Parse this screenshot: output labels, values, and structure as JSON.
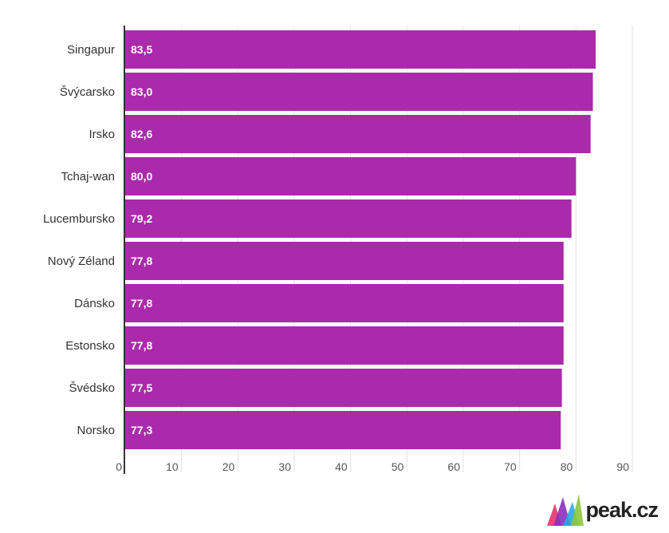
{
  "chart_data": {
    "type": "bar",
    "orientation": "horizontal",
    "categories": [
      "Singapur",
      "Švýcarsko",
      "Irsko",
      "Tchaj-wan",
      "Lucembursko",
      "Nový Zéland",
      "Dánsko",
      "Estonsko",
      "Švédsko",
      "Norsko"
    ],
    "values": [
      83.5,
      83.0,
      82.6,
      80.0,
      79.2,
      77.8,
      77.8,
      77.8,
      77.5,
      77.3
    ],
    "value_labels": [
      "83,5",
      "83,0",
      "82,6",
      "80,0",
      "79,2",
      "77,8",
      "77,8",
      "77,8",
      "77,5",
      "77,3"
    ],
    "xlim": [
      0,
      90
    ],
    "xticks": [
      0,
      10,
      20,
      30,
      40,
      50,
      60,
      70,
      80,
      90
    ],
    "grid": true,
    "bar_color": "#ab2aab",
    "title": "",
    "xlabel": "",
    "ylabel": ""
  },
  "logo": {
    "text": "peak.cz",
    "colors": [
      "#e8336d",
      "#8b2fbf",
      "#2aa7df",
      "#8cc63f"
    ]
  }
}
